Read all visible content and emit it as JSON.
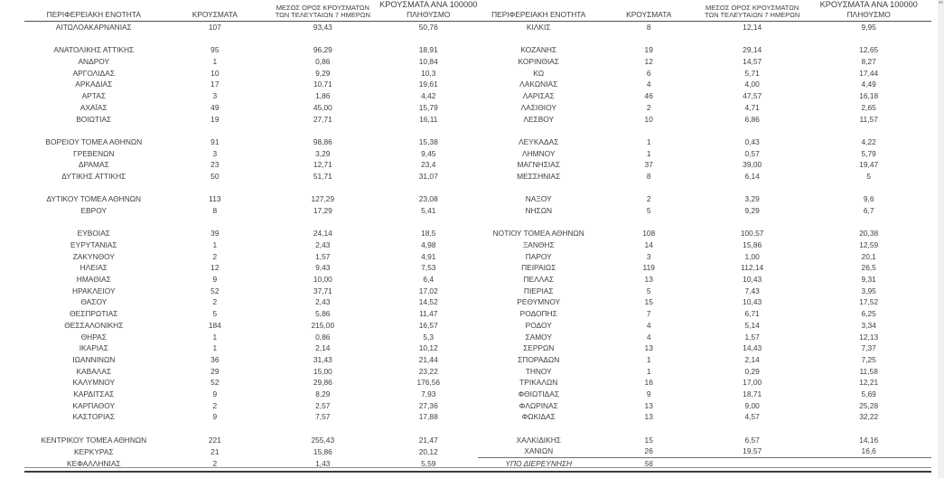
{
  "header": {
    "region": "ΠΕΡΙΦΕΡΕΙΑΚΗ ΕΝΟΤΗΤΑ",
    "cases": "ΚΡΟΥΣΜΑΤΑ",
    "avg_line1": "ΜΕΣΟΣ ΟΡΟΣ ΚΡΟΥΣΜΑΤΩΝ",
    "avg_line2": "ΤΩΝ ΤΕΛΕΥΤΑΙΩΝ 7 ΗΜΕΡΩΝ",
    "per100k_line1": "ΚΡΟΥΣΜΑΤΑ ΑΝΑ 100000",
    "per100k_line2": "ΠΛΗΘΥΣΜΟ"
  },
  "text_color": "#3f3f3f",
  "left_rows": [
    {
      "region": "ΑΙΤΩΛΟΑΚΑΡΝΑΝΙΑΣ",
      "cases": "107",
      "avg7": "93,43",
      "per100k": "50,76"
    },
    {
      "region": "",
      "cases": "",
      "avg7": "",
      "per100k": ""
    },
    {
      "region": "ΑΝΑΤΟΛΙΚΗΣ ΑΤΤΙΚΗΣ",
      "cases": "95",
      "avg7": "96,29",
      "per100k": "18,91"
    },
    {
      "region": "ΑΝΔΡΟΥ",
      "cases": "1",
      "avg7": "0,86",
      "per100k": "10,84"
    },
    {
      "region": "ΑΡΓΟΛΙΔΑΣ",
      "cases": "10",
      "avg7": "9,29",
      "per100k": "10,3"
    },
    {
      "region": "ΑΡΚΑΔΙΑΣ",
      "cases": "17",
      "avg7": "10,71",
      "per100k": "19,61"
    },
    {
      "region": "ΑΡΤΑΣ",
      "cases": "3",
      "avg7": "1,86",
      "per100k": "4,42"
    },
    {
      "region": "ΑΧΑΪΑΣ",
      "cases": "49",
      "avg7": "45,00",
      "per100k": "15,79"
    },
    {
      "region": "ΒΟΙΩΤΙΑΣ",
      "cases": "19",
      "avg7": "27,71",
      "per100k": "16,11"
    },
    {
      "region": "",
      "cases": "",
      "avg7": "",
      "per100k": ""
    },
    {
      "region": "ΒΟΡΕΙΟΥ ΤΟΜΕΑ ΑΘΗΝΩΝ",
      "cases": "91",
      "avg7": "98,86",
      "per100k": "15,38"
    },
    {
      "region": "ΓΡΕΒΕΝΩΝ",
      "cases": "3",
      "avg7": "3,29",
      "per100k": "9,45"
    },
    {
      "region": "ΔΡΑΜΑΣ",
      "cases": "23",
      "avg7": "12,71",
      "per100k": "23,4"
    },
    {
      "region": "ΔΥΤΙΚΗΣ ΑΤΤΙΚΗΣ",
      "cases": "50",
      "avg7": "51,71",
      "per100k": "31,07"
    },
    {
      "region": "",
      "cases": "",
      "avg7": "",
      "per100k": ""
    },
    {
      "region": "ΔΥΤΙΚΟΥ ΤΟΜΕΑ ΑΘΗΝΩΝ",
      "cases": "113",
      "avg7": "127,29",
      "per100k": "23,08"
    },
    {
      "region": "ΕΒΡΟΥ",
      "cases": "8",
      "avg7": "17,29",
      "per100k": "5,41"
    },
    {
      "region": "",
      "cases": "",
      "avg7": "",
      "per100k": ""
    },
    {
      "region": "ΕΥΒΟΙΑΣ",
      "cases": "39",
      "avg7": "24,14",
      "per100k": "18,5"
    },
    {
      "region": "ΕΥΡΥΤΑΝΙΑΣ",
      "cases": "1",
      "avg7": "2,43",
      "per100k": "4,98"
    },
    {
      "region": "ΖΑΚΥΝΘΟΥ",
      "cases": "2",
      "avg7": "1,57",
      "per100k": "4,91"
    },
    {
      "region": "ΗΛΕΙΑΣ",
      "cases": "12",
      "avg7": "9,43",
      "per100k": "7,53"
    },
    {
      "region": "ΗΜΑΘΙΑΣ",
      "cases": "9",
      "avg7": "10,00",
      "per100k": "6,4"
    },
    {
      "region": "ΗΡΑΚΛΕΙΟΥ",
      "cases": "52",
      "avg7": "37,71",
      "per100k": "17,02"
    },
    {
      "region": "ΘΑΣΟΥ",
      "cases": "2",
      "avg7": "2,43",
      "per100k": "14,52"
    },
    {
      "region": "ΘΕΣΠΡΩΤΙΑΣ",
      "cases": "5",
      "avg7": "5,86",
      "per100k": "11,47"
    },
    {
      "region": "ΘΕΣΣΑΛΟΝΙΚΗΣ",
      "cases": "184",
      "avg7": "215,00",
      "per100k": "16,57"
    },
    {
      "region": "ΘΗΡΑΣ",
      "cases": "1",
      "avg7": "0,86",
      "per100k": "5,3"
    },
    {
      "region": "ΙΚΑΡΙΑΣ",
      "cases": "1",
      "avg7": "2,14",
      "per100k": "10,12"
    },
    {
      "region": "ΙΩΑΝΝΙΝΩΝ",
      "cases": "36",
      "avg7": "31,43",
      "per100k": "21,44"
    },
    {
      "region": "ΚΑΒΑΛΑΣ",
      "cases": "29",
      "avg7": "15,00",
      "per100k": "23,22"
    },
    {
      "region": "ΚΑΛΥΜΝΟΥ",
      "cases": "52",
      "avg7": "29,86",
      "per100k": "176,56"
    },
    {
      "region": "ΚΑΡΔΙΤΣΑΣ",
      "cases": "9",
      "avg7": "8,29",
      "per100k": "7,93"
    },
    {
      "region": "ΚΑΡΠΑΘΟΥ",
      "cases": "2",
      "avg7": "2,57",
      "per100k": "27,36"
    },
    {
      "region": "ΚΑΣΤΟΡΙΑΣ",
      "cases": "9",
      "avg7": "7,57",
      "per100k": "17,88"
    },
    {
      "region": "",
      "cases": "",
      "avg7": "",
      "per100k": ""
    },
    {
      "region": "ΚΕΝΤΡΙΚΟΥ ΤΟΜΕΑ ΑΘΗΝΩΝ",
      "cases": "221",
      "avg7": "255,43",
      "per100k": "21,47"
    },
    {
      "region": "ΚΕΡΚΥΡΑΣ",
      "cases": "21",
      "avg7": "15,86",
      "per100k": "20,12"
    },
    {
      "region": "ΚΕΦΑΛΛΗΝΙΑΣ",
      "cases": "2",
      "avg7": "1,43",
      "per100k": "5,59"
    }
  ],
  "right_rows": [
    {
      "region": "ΚΙΛΚΙΣ",
      "cases": "8",
      "avg7": "12,14",
      "per100k": "9,95"
    },
    {
      "region": "",
      "cases": "",
      "avg7": "",
      "per100k": ""
    },
    {
      "region": "ΚΟΖΑΝΗΣ",
      "cases": "19",
      "avg7": "29,14",
      "per100k": "12,65"
    },
    {
      "region": "ΚΟΡΙΝΘΙΑΣ",
      "cases": "12",
      "avg7": "14,57",
      "per100k": "8,27"
    },
    {
      "region": "ΚΩ",
      "cases": "6",
      "avg7": "5,71",
      "per100k": "17,44"
    },
    {
      "region": "ΛΑΚΩΝΙΑΣ",
      "cases": "4",
      "avg7": "4,00",
      "per100k": "4,49"
    },
    {
      "region": "ΛΑΡΙΣΑΣ",
      "cases": "46",
      "avg7": "47,57",
      "per100k": "16,18"
    },
    {
      "region": "ΛΑΣΙΘΙΟΥ",
      "cases": "2",
      "avg7": "4,71",
      "per100k": "2,65"
    },
    {
      "region": "ΛΕΣΒΟΥ",
      "cases": "10",
      "avg7": "6,86",
      "per100k": "11,57"
    },
    {
      "region": "",
      "cases": "",
      "avg7": "",
      "per100k": ""
    },
    {
      "region": "ΛΕΥΚΑΔΑΣ",
      "cases": "1",
      "avg7": "0,43",
      "per100k": "4,22"
    },
    {
      "region": "ΛΗΜΝΟΥ",
      "cases": "1",
      "avg7": "0,57",
      "per100k": "5,79"
    },
    {
      "region": "ΜΑΓΝΗΣΙΑΣ",
      "cases": "37",
      "avg7": "39,00",
      "per100k": "19,47"
    },
    {
      "region": "ΜΕΣΣΗΝΙΑΣ",
      "cases": "8",
      "avg7": "6,14",
      "per100k": "5"
    },
    {
      "region": "",
      "cases": "",
      "avg7": "",
      "per100k": ""
    },
    {
      "region": "ΝΑΞΟΥ",
      "cases": "2",
      "avg7": "3,29",
      "per100k": "9,6"
    },
    {
      "region": "ΝΗΣΩΝ",
      "cases": "5",
      "avg7": "9,29",
      "per100k": "6,7"
    },
    {
      "region": "",
      "cases": "",
      "avg7": "",
      "per100k": ""
    },
    {
      "region": "ΝΟΤΙΟΥ ΤΟΜΕΑ ΑΘΗΝΩΝ",
      "cases": "108",
      "avg7": "100,57",
      "per100k": "20,38"
    },
    {
      "region": "ΞΑΝΘΗΣ",
      "cases": "14",
      "avg7": "15,86",
      "per100k": "12,59"
    },
    {
      "region": "ΠΑΡΟΥ",
      "cases": "3",
      "avg7": "1,00",
      "per100k": "20,1"
    },
    {
      "region": "ΠΕΙΡΑΙΩΣ",
      "cases": "119",
      "avg7": "112,14",
      "per100k": "26,5"
    },
    {
      "region": "ΠΕΛΛΑΣ",
      "cases": "13",
      "avg7": "10,43",
      "per100k": "9,31"
    },
    {
      "region": "ΠΙΕΡΙΑΣ",
      "cases": "5",
      "avg7": "7,43",
      "per100k": "3,95"
    },
    {
      "region": "ΡΕΘΥΜΝΟΥ",
      "cases": "15",
      "avg7": "10,43",
      "per100k": "17,52"
    },
    {
      "region": "ΡΟΔΟΠΗΣ",
      "cases": "7",
      "avg7": "6,71",
      "per100k": "6,25"
    },
    {
      "region": "ΡΟΔΟΥ",
      "cases": "4",
      "avg7": "5,14",
      "per100k": "3,34"
    },
    {
      "region": "ΣΑΜΟΥ",
      "cases": "4",
      "avg7": "1,57",
      "per100k": "12,13"
    },
    {
      "region": "ΣΕΡΡΩΝ",
      "cases": "13",
      "avg7": "14,43",
      "per100k": "7,37"
    },
    {
      "region": "ΣΠΟΡΑΔΩΝ",
      "cases": "1",
      "avg7": "2,14",
      "per100k": "7,25"
    },
    {
      "region": "ΤΗΝΟΥ",
      "cases": "1",
      "avg7": "0,29",
      "per100k": "11,58"
    },
    {
      "region": "ΤΡΙΚΑΛΩΝ",
      "cases": "16",
      "avg7": "17,00",
      "per100k": "12,21"
    },
    {
      "region": "ΦΘΙΩΤΙΔΑΣ",
      "cases": "9",
      "avg7": "18,71",
      "per100k": "5,69"
    },
    {
      "region": "ΦΛΩΡΙΝΑΣ",
      "cases": "13",
      "avg7": "9,00",
      "per100k": "25,28"
    },
    {
      "region": "ΦΩΚΙΔΑΣ",
      "cases": "13",
      "avg7": "4,57",
      "per100k": "32,22"
    },
    {
      "region": "",
      "cases": "",
      "avg7": "",
      "per100k": ""
    },
    {
      "region": "ΧΑΛΚΙΔΙΚΗΣ",
      "cases": "15",
      "avg7": "6,57",
      "per100k": "14,16"
    },
    {
      "region": "ΧΑΝΙΩΝ",
      "cases": "26",
      "avg7": "19,57",
      "per100k": "16,6"
    },
    {
      "region": "ΥΠΟ ΔΙΕΡΕΥΝΗΣΗ",
      "cases": "56",
      "avg7": "",
      "per100k": "",
      "italic": true,
      "top_border": true
    }
  ]
}
